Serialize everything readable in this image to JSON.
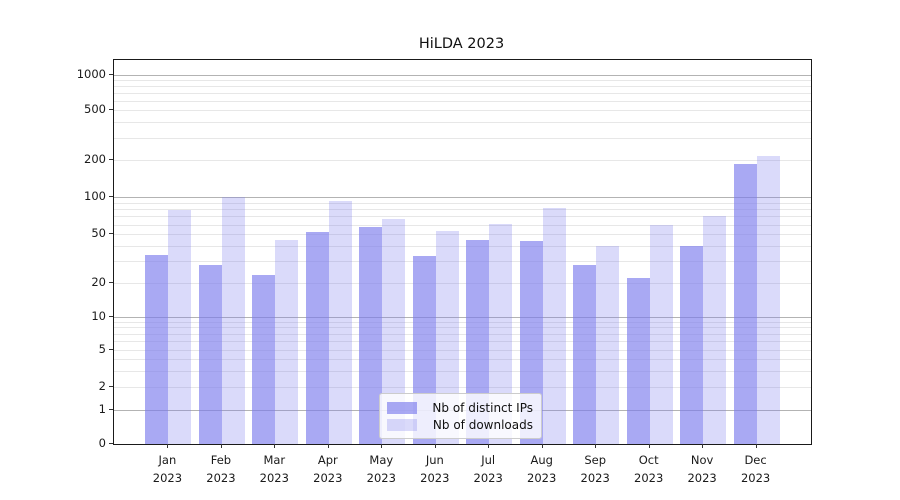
{
  "chart_data": {
    "type": "bar",
    "title": "HiLDA 2023",
    "categories": [
      "Jan 2023",
      "Feb 2023",
      "Mar 2023",
      "Apr 2023",
      "May 2023",
      "Jun 2023",
      "Jul 2023",
      "Aug 2023",
      "Sep 2023",
      "Oct 2023",
      "Nov 2023",
      "Dec 2023"
    ],
    "months": [
      "Jan",
      "Feb",
      "Mar",
      "Apr",
      "May",
      "Jun",
      "Jul",
      "Aug",
      "Sep",
      "Oct",
      "Nov",
      "Dec"
    ],
    "year": "2023",
    "series": [
      {
        "name": "Nb of distinct IPs",
        "color": "#7b7bed",
        "alpha": 0.65,
        "values": [
          34,
          28,
          23,
          52,
          57,
          33,
          45,
          44,
          28,
          22,
          40,
          187
        ]
      },
      {
        "name": "Nb of downloads",
        "color": "#7b7bed",
        "alpha": 0.28,
        "values": [
          79,
          100,
          45,
          93,
          67,
          53,
          61,
          82,
          40,
          60,
          70,
          215
        ]
      }
    ],
    "xlabel": "",
    "ylabel": "",
    "yscale": "log-like (asinh), linear below 1",
    "yticks": [
      0,
      1,
      2,
      5,
      10,
      20,
      50,
      100,
      200,
      500,
      1000
    ],
    "ylim": [
      0,
      1350
    ],
    "grid": true,
    "legend_position": "lower center"
  }
}
